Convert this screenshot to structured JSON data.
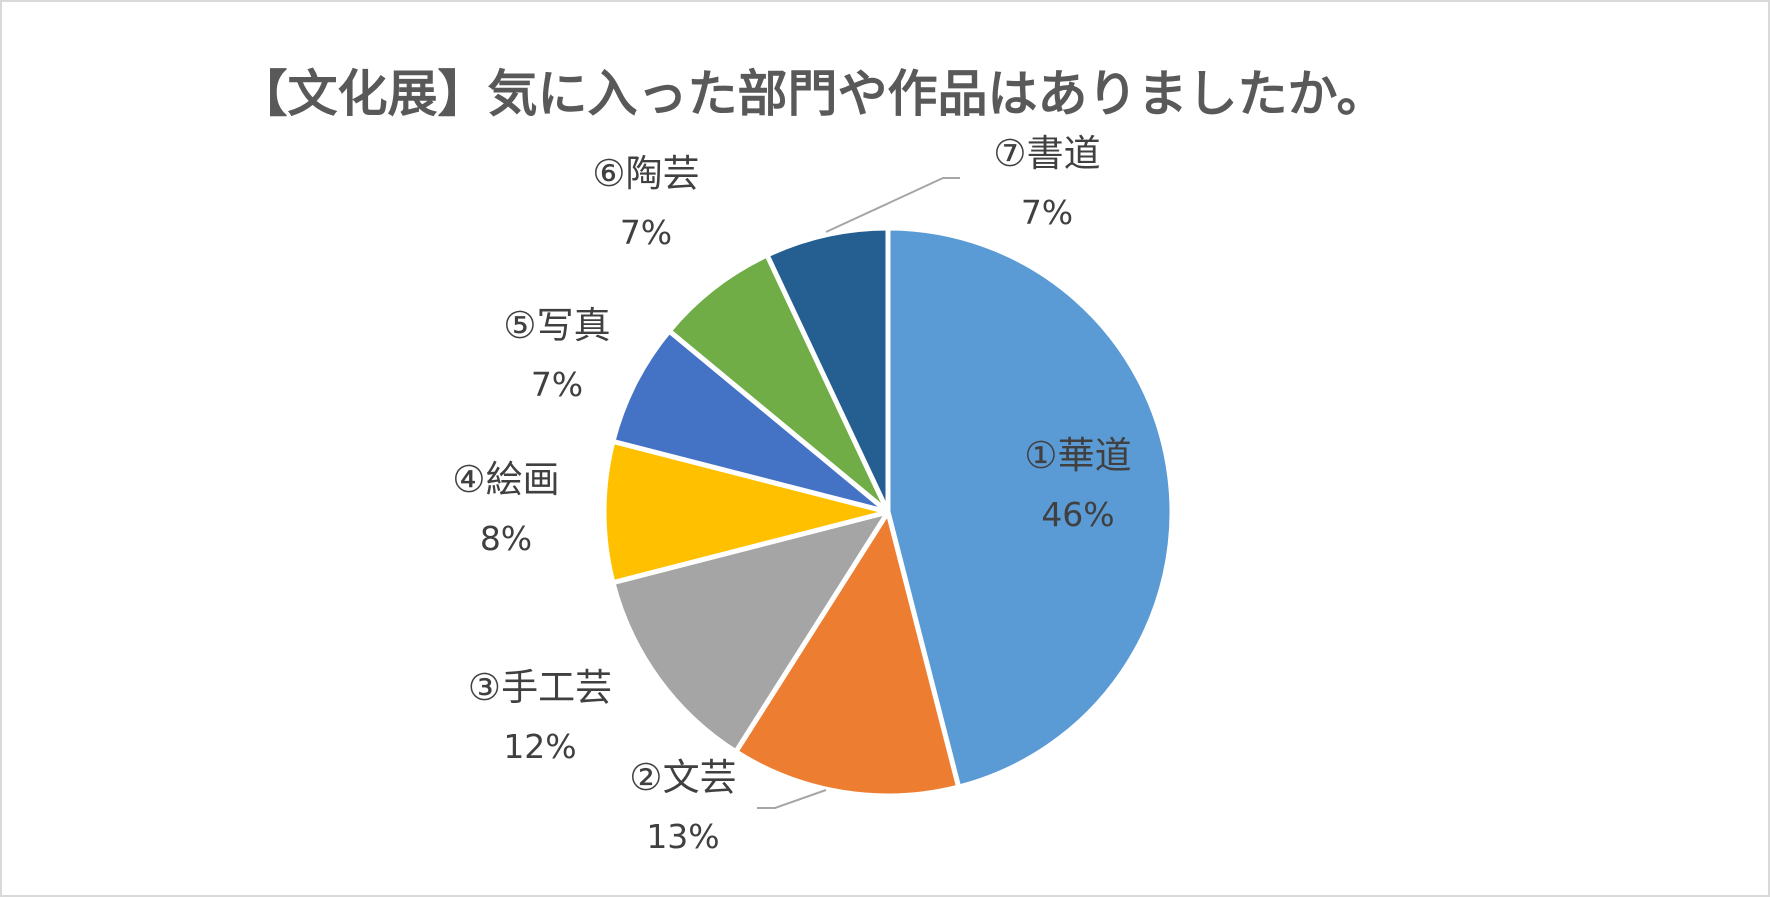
{
  "chart_data": {
    "type": "pie",
    "title": "【文化展】気に入った部門や作品はありましたか。",
    "slices": [
      {
        "name": "①華道",
        "value": 46,
        "label": "46%",
        "color": "#5b9bd5"
      },
      {
        "name": "②文芸",
        "value": 13,
        "label": "13%",
        "color": "#ed7d31"
      },
      {
        "name": "③手工芸",
        "value": 12,
        "label": "12%",
        "color": "#a5a5a5"
      },
      {
        "name": "④絵画",
        "value": 8,
        "label": "8%",
        "color": "#ffc000"
      },
      {
        "name": "⑤写真",
        "value": 7,
        "label": "7%",
        "color": "#4472c4"
      },
      {
        "name": "⑥陶芸",
        "value": 7,
        "label": "7%",
        "color": "#70ad47"
      },
      {
        "name": "⑦書道",
        "value": 7,
        "label": "7%",
        "color": "#255e91"
      }
    ],
    "start_angle": "12 o'clock",
    "direction": "clockwise"
  }
}
